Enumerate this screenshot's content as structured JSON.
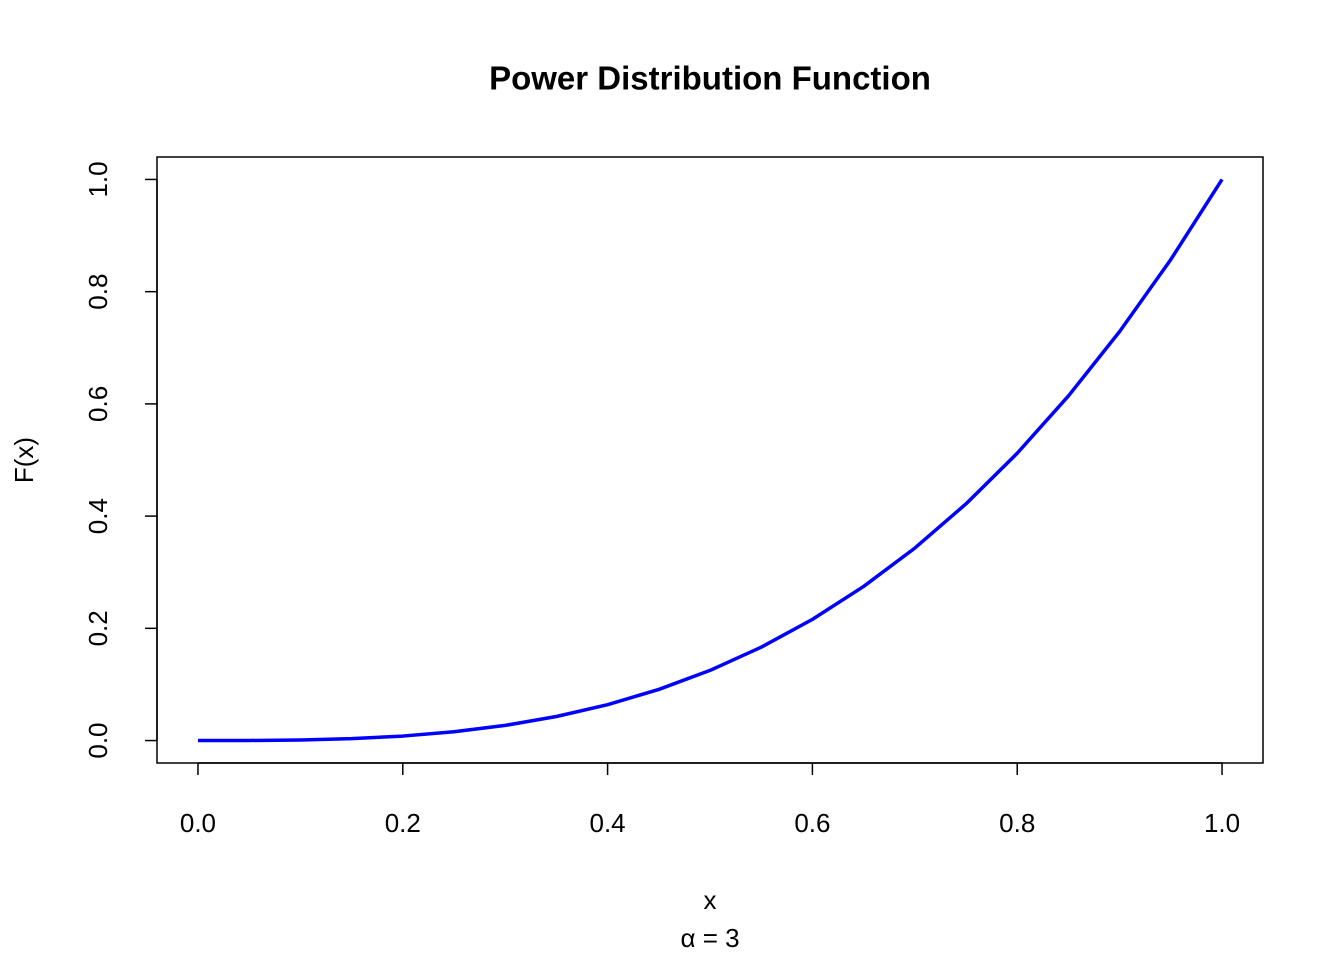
{
  "chart_data": {
    "type": "line",
    "title": "Power Distribution Function",
    "x_label": "x",
    "y_label": "F(x)",
    "subtitle": "α = 3",
    "x": [
      0,
      0.05,
      0.1,
      0.15,
      0.2,
      0.25,
      0.3,
      0.35,
      0.4,
      0.45,
      0.5,
      0.55,
      0.6,
      0.65,
      0.7,
      0.75,
      0.8,
      0.85,
      0.9,
      0.95,
      1
    ],
    "values": [
      0,
      0.000125,
      0.001,
      0.003375,
      0.008,
      0.015625,
      0.027,
      0.042875,
      0.064,
      0.091125,
      0.125,
      0.166375,
      0.216,
      0.274625,
      0.343,
      0.421875,
      0.512,
      0.614125,
      0.729,
      0.857375,
      1
    ],
    "color": "#0000ff",
    "xlim": [
      -0.04,
      1.04
    ],
    "ylim": [
      -0.04,
      1.04
    ],
    "xticks": [
      {
        "value": 0,
        "label": "0.0"
      },
      0.2,
      0.4,
      0.6,
      0.8,
      {
        "value": 1,
        "label": "1.0"
      }
    ],
    "yticks": [
      {
        "value": 0,
        "label": "0.0"
      },
      0.2,
      0.4,
      0.6,
      0.8,
      {
        "value": 1,
        "label": "1.0"
      }
    ]
  }
}
